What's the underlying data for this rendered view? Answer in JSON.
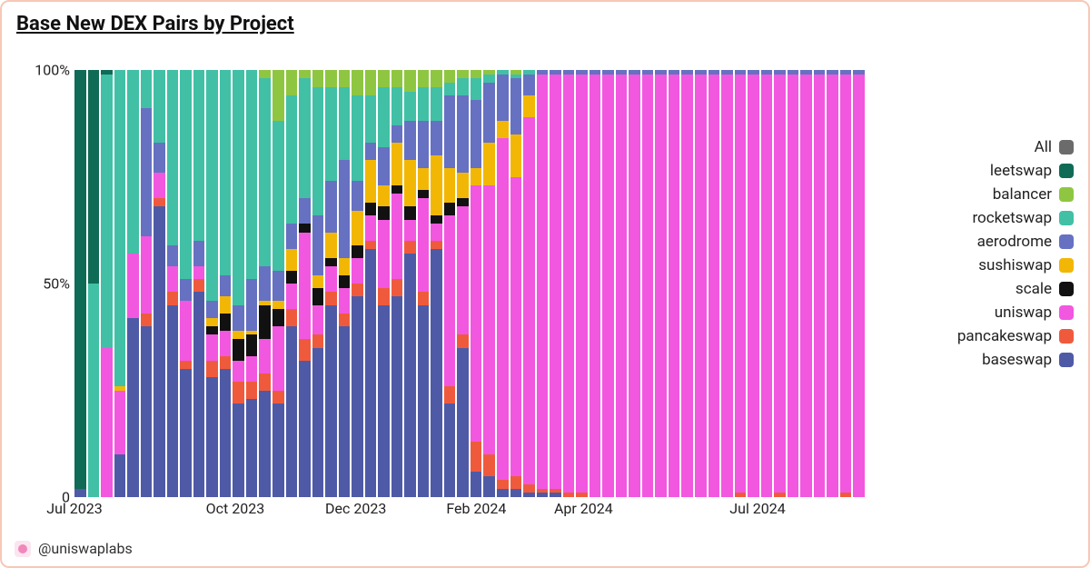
{
  "title": "Base New DEX Pairs by Project",
  "attribution": "@uniswaplabs",
  "chart": {
    "type": "stacked-bar-100pct",
    "background_color": "#ffffff",
    "border_color": "#f7c8b7",
    "title_fontsize": 22,
    "label_fontsize": 16,
    "legend_fontsize": 17,
    "ylim": [
      0,
      100
    ],
    "y_ticks": [
      {
        "value": 0,
        "label": "0"
      },
      {
        "value": 50,
        "label": "50%"
      },
      {
        "value": 100,
        "label": "100%"
      }
    ],
    "x_ticks": [
      {
        "index": 0,
        "label": "Jul 2023"
      },
      {
        "index": 12,
        "label": "Oct 2023"
      },
      {
        "index": 21,
        "label": "Dec 2023"
      },
      {
        "index": 30,
        "label": "Feb 2024"
      },
      {
        "index": 38,
        "label": "Apr 2024"
      },
      {
        "index": 51,
        "label": "Jul 2024"
      }
    ],
    "series": [
      {
        "key": "baseswap",
        "label": "baseswap",
        "color": "#4f5aa6"
      },
      {
        "key": "pancakeswap",
        "label": "pancakeswap",
        "color": "#f05a3c"
      },
      {
        "key": "uniswap",
        "label": "uniswap",
        "color": "#f257e0"
      },
      {
        "key": "scale",
        "label": "scale",
        "color": "#111111"
      },
      {
        "key": "sushiswap",
        "label": "sushiswap",
        "color": "#f2b705"
      },
      {
        "key": "aerodrome",
        "label": "aerodrome",
        "color": "#6671c2"
      },
      {
        "key": "rocketswap",
        "label": "rocketswap",
        "color": "#41c0a6"
      },
      {
        "key": "balancer",
        "label": "balancer",
        "color": "#8fc641"
      },
      {
        "key": "leetswap",
        "label": "leetswap",
        "color": "#0f6b56"
      },
      {
        "key": "all",
        "label": "All",
        "color": "#6b6b6b"
      }
    ],
    "legend_order": [
      "all",
      "leetswap",
      "balancer",
      "rocketswap",
      "aerodrome",
      "sushiswap",
      "scale",
      "uniswap",
      "pancakeswap",
      "baseswap"
    ],
    "bars": [
      {
        "baseswap": 2,
        "pancakeswap": 0,
        "uniswap": 0,
        "scale": 0,
        "sushiswap": 0,
        "aerodrome": 0,
        "rocketswap": 0,
        "balancer": 0,
        "leetswap": 98
      },
      {
        "baseswap": 0,
        "pancakeswap": 0,
        "uniswap": 0,
        "scale": 0,
        "sushiswap": 0,
        "aerodrome": 0,
        "rocketswap": 50,
        "balancer": 0,
        "leetswap": 50
      },
      {
        "baseswap": 0,
        "pancakeswap": 0,
        "uniswap": 35,
        "scale": 0,
        "sushiswap": 0,
        "aerodrome": 0,
        "rocketswap": 64,
        "balancer": 0,
        "leetswap": 1
      },
      {
        "baseswap": 10,
        "pancakeswap": 0,
        "uniswap": 15,
        "scale": 0,
        "sushiswap": 1,
        "aerodrome": 0,
        "rocketswap": 74,
        "balancer": 0,
        "leetswap": 0
      },
      {
        "baseswap": 42,
        "pancakeswap": 0,
        "uniswap": 15,
        "scale": 0,
        "sushiswap": 0,
        "aerodrome": 0,
        "rocketswap": 43,
        "balancer": 0,
        "leetswap": 0
      },
      {
        "baseswap": 40,
        "pancakeswap": 3,
        "uniswap": 18,
        "scale": 0,
        "sushiswap": 0,
        "aerodrome": 30,
        "rocketswap": 9,
        "balancer": 0,
        "leetswap": 0
      },
      {
        "baseswap": 68,
        "pancakeswap": 2,
        "uniswap": 6,
        "scale": 0,
        "sushiswap": 0,
        "aerodrome": 7,
        "rocketswap": 17,
        "balancer": 0,
        "leetswap": 0
      },
      {
        "baseswap": 45,
        "pancakeswap": 3,
        "uniswap": 6,
        "scale": 0,
        "sushiswap": 0,
        "aerodrome": 5,
        "rocketswap": 41,
        "balancer": 0,
        "leetswap": 0
      },
      {
        "baseswap": 30,
        "pancakeswap": 2,
        "uniswap": 14,
        "scale": 0,
        "sushiswap": 0,
        "aerodrome": 5,
        "rocketswap": 49,
        "balancer": 0,
        "leetswap": 0
      },
      {
        "baseswap": 48,
        "pancakeswap": 3,
        "uniswap": 3,
        "scale": 0,
        "sushiswap": 0,
        "aerodrome": 6,
        "rocketswap": 40,
        "balancer": 0,
        "leetswap": 0
      },
      {
        "baseswap": 28,
        "pancakeswap": 4,
        "uniswap": 6,
        "scale": 2,
        "sushiswap": 2,
        "aerodrome": 4,
        "rocketswap": 54,
        "balancer": 0,
        "leetswap": 0
      },
      {
        "baseswap": 30,
        "pancakeswap": 3,
        "uniswap": 6,
        "scale": 4,
        "sushiswap": 4,
        "aerodrome": 5,
        "rocketswap": 48,
        "balancer": 0,
        "leetswap": 0
      },
      {
        "baseswap": 22,
        "pancakeswap": 5,
        "uniswap": 5,
        "scale": 5,
        "sushiswap": 2,
        "aerodrome": 6,
        "rocketswap": 55,
        "balancer": 0,
        "leetswap": 0
      },
      {
        "baseswap": 23,
        "pancakeswap": 4,
        "uniswap": 6,
        "scale": 5,
        "sushiswap": 1,
        "aerodrome": 12,
        "rocketswap": 49,
        "balancer": 0,
        "leetswap": 0
      },
      {
        "baseswap": 25,
        "pancakeswap": 4,
        "uniswap": 8,
        "scale": 8,
        "sushiswap": 1,
        "aerodrome": 8,
        "rocketswap": 44,
        "balancer": 2,
        "leetswap": 0
      },
      {
        "baseswap": 22,
        "pancakeswap": 3,
        "uniswap": 15,
        "scale": 4,
        "sushiswap": 2,
        "aerodrome": 7,
        "rocketswap": 35,
        "balancer": 12,
        "leetswap": 0
      },
      {
        "baseswap": 40,
        "pancakeswap": 4,
        "uniswap": 6,
        "scale": 3,
        "sushiswap": 5,
        "aerodrome": 6,
        "rocketswap": 30,
        "balancer": 6,
        "leetswap": 0
      },
      {
        "baseswap": 32,
        "pancakeswap": 5,
        "uniswap": 25,
        "scale": 2,
        "sushiswap": 0,
        "aerodrome": 6,
        "rocketswap": 28,
        "balancer": 2,
        "leetswap": 0
      },
      {
        "baseswap": 35,
        "pancakeswap": 3,
        "uniswap": 7,
        "scale": 4,
        "sushiswap": 3,
        "aerodrome": 14,
        "rocketswap": 30,
        "balancer": 4,
        "leetswap": 0
      },
      {
        "baseswap": 45,
        "pancakeswap": 3,
        "uniswap": 6,
        "scale": 2,
        "sushiswap": 6,
        "aerodrome": 12,
        "rocketswap": 22,
        "balancer": 4,
        "leetswap": 0
      },
      {
        "baseswap": 40,
        "pancakeswap": 3,
        "uniswap": 6,
        "scale": 3,
        "sushiswap": 4,
        "aerodrome": 23,
        "rocketswap": 17,
        "balancer": 4,
        "leetswap": 0
      },
      {
        "baseswap": 47,
        "pancakeswap": 3,
        "uniswap": 6,
        "scale": 3,
        "sushiswap": 8,
        "aerodrome": 7,
        "rocketswap": 20,
        "balancer": 6,
        "leetswap": 0
      },
      {
        "baseswap": 58,
        "pancakeswap": 2,
        "uniswap": 6,
        "scale": 3,
        "sushiswap": 10,
        "aerodrome": 4,
        "rocketswap": 11,
        "balancer": 6,
        "leetswap": 0
      },
      {
        "baseswap": 45,
        "pancakeswap": 4,
        "uniswap": 16,
        "scale": 3,
        "sushiswap": 5,
        "aerodrome": 9,
        "rocketswap": 14,
        "balancer": 4,
        "leetswap": 0
      },
      {
        "baseswap": 47,
        "pancakeswap": 4,
        "uniswap": 20,
        "scale": 2,
        "sushiswap": 10,
        "aerodrome": 4,
        "rocketswap": 9,
        "balancer": 4,
        "leetswap": 0
      },
      {
        "baseswap": 57,
        "pancakeswap": 3,
        "uniswap": 5,
        "scale": 3,
        "sushiswap": 11,
        "aerodrome": 9,
        "rocketswap": 7,
        "balancer": 5,
        "leetswap": 0
      },
      {
        "baseswap": 45,
        "pancakeswap": 3,
        "uniswap": 22,
        "scale": 2,
        "sushiswap": 5,
        "aerodrome": 11,
        "rocketswap": 8,
        "balancer": 4,
        "leetswap": 0
      },
      {
        "baseswap": 58,
        "pancakeswap": 2,
        "uniswap": 4,
        "scale": 2,
        "sushiswap": 14,
        "aerodrome": 8,
        "rocketswap": 8,
        "balancer": 4,
        "leetswap": 0
      },
      {
        "baseswap": 22,
        "pancakeswap": 4,
        "uniswap": 40,
        "scale": 3,
        "sushiswap": 8,
        "aerodrome": 17,
        "rocketswap": 3,
        "balancer": 3,
        "leetswap": 0
      },
      {
        "baseswap": 35,
        "pancakeswap": 3,
        "uniswap": 30,
        "scale": 2,
        "sushiswap": 6,
        "aerodrome": 18,
        "rocketswap": 4,
        "balancer": 2,
        "leetswap": 0
      },
      {
        "baseswap": 6,
        "pancakeswap": 7,
        "uniswap": 60,
        "scale": 0,
        "sushiswap": 4,
        "aerodrome": 16,
        "rocketswap": 5,
        "balancer": 2,
        "leetswap": 0
      },
      {
        "baseswap": 5,
        "pancakeswap": 5,
        "uniswap": 63,
        "scale": 0,
        "sushiswap": 10,
        "aerodrome": 14,
        "rocketswap": 2,
        "balancer": 1,
        "leetswap": 0
      },
      {
        "baseswap": 2,
        "pancakeswap": 2,
        "uniswap": 80,
        "scale": 0,
        "sushiswap": 4,
        "aerodrome": 11,
        "rocketswap": 1,
        "balancer": 0,
        "leetswap": 0
      },
      {
        "baseswap": 2,
        "pancakeswap": 3,
        "uniswap": 70,
        "scale": 0,
        "sushiswap": 10,
        "aerodrome": 13,
        "rocketswap": 1,
        "balancer": 1,
        "leetswap": 0
      },
      {
        "baseswap": 1,
        "pancakeswap": 2,
        "uniswap": 86,
        "scale": 0,
        "sushiswap": 5,
        "aerodrome": 5,
        "rocketswap": 1,
        "balancer": 0,
        "leetswap": 0
      },
      {
        "baseswap": 1,
        "pancakeswap": 1,
        "uniswap": 97,
        "scale": 0,
        "sushiswap": 0,
        "aerodrome": 1,
        "rocketswap": 0,
        "balancer": 0,
        "leetswap": 0
      },
      {
        "baseswap": 1,
        "pancakeswap": 1,
        "uniswap": 97,
        "scale": 0,
        "sushiswap": 0,
        "aerodrome": 1,
        "rocketswap": 0,
        "balancer": 0,
        "leetswap": 0
      },
      {
        "baseswap": 0,
        "pancakeswap": 1,
        "uniswap": 98,
        "scale": 0,
        "sushiswap": 0,
        "aerodrome": 1,
        "rocketswap": 0,
        "balancer": 0,
        "leetswap": 0
      },
      {
        "baseswap": 0,
        "pancakeswap": 1,
        "uniswap": 98,
        "scale": 0,
        "sushiswap": 0,
        "aerodrome": 1,
        "rocketswap": 0,
        "balancer": 0,
        "leetswap": 0
      },
      {
        "baseswap": 0,
        "pancakeswap": 0,
        "uniswap": 99,
        "scale": 0,
        "sushiswap": 0,
        "aerodrome": 1,
        "rocketswap": 0,
        "balancer": 0,
        "leetswap": 0
      },
      {
        "baseswap": 0,
        "pancakeswap": 0,
        "uniswap": 99,
        "scale": 0,
        "sushiswap": 0,
        "aerodrome": 1,
        "rocketswap": 0,
        "balancer": 0,
        "leetswap": 0
      },
      {
        "baseswap": 0,
        "pancakeswap": 0,
        "uniswap": 99,
        "scale": 0,
        "sushiswap": 0,
        "aerodrome": 1,
        "rocketswap": 0,
        "balancer": 0,
        "leetswap": 0
      },
      {
        "baseswap": 0,
        "pancakeswap": 0,
        "uniswap": 99,
        "scale": 0,
        "sushiswap": 0,
        "aerodrome": 1,
        "rocketswap": 0,
        "balancer": 0,
        "leetswap": 0
      },
      {
        "baseswap": 0,
        "pancakeswap": 0,
        "uniswap": 99,
        "scale": 0,
        "sushiswap": 0,
        "aerodrome": 1,
        "rocketswap": 0,
        "balancer": 0,
        "leetswap": 0
      },
      {
        "baseswap": 0,
        "pancakeswap": 0,
        "uniswap": 99,
        "scale": 0,
        "sushiswap": 0,
        "aerodrome": 1,
        "rocketswap": 0,
        "balancer": 0,
        "leetswap": 0
      },
      {
        "baseswap": 0,
        "pancakeswap": 0,
        "uniswap": 99,
        "scale": 0,
        "sushiswap": 0,
        "aerodrome": 1,
        "rocketswap": 0,
        "balancer": 0,
        "leetswap": 0
      },
      {
        "baseswap": 0,
        "pancakeswap": 0,
        "uniswap": 99,
        "scale": 0,
        "sushiswap": 0,
        "aerodrome": 1,
        "rocketswap": 0,
        "balancer": 0,
        "leetswap": 0
      },
      {
        "baseswap": 0,
        "pancakeswap": 0,
        "uniswap": 99,
        "scale": 0,
        "sushiswap": 0,
        "aerodrome": 1,
        "rocketswap": 0,
        "balancer": 0,
        "leetswap": 0
      },
      {
        "baseswap": 0,
        "pancakeswap": 0,
        "uniswap": 99,
        "scale": 0,
        "sushiswap": 0,
        "aerodrome": 1,
        "rocketswap": 0,
        "balancer": 0,
        "leetswap": 0
      },
      {
        "baseswap": 0,
        "pancakeswap": 0,
        "uniswap": 99,
        "scale": 0,
        "sushiswap": 0,
        "aerodrome": 1,
        "rocketswap": 0,
        "balancer": 0,
        "leetswap": 0
      },
      {
        "baseswap": 0,
        "pancakeswap": 1,
        "uniswap": 98,
        "scale": 0,
        "sushiswap": 0,
        "aerodrome": 1,
        "rocketswap": 0,
        "balancer": 0,
        "leetswap": 0
      },
      {
        "baseswap": 0,
        "pancakeswap": 0,
        "uniswap": 99,
        "scale": 0,
        "sushiswap": 0,
        "aerodrome": 1,
        "rocketswap": 0,
        "balancer": 0,
        "leetswap": 0
      },
      {
        "baseswap": 0,
        "pancakeswap": 0,
        "uniswap": 99,
        "scale": 0,
        "sushiswap": 0,
        "aerodrome": 1,
        "rocketswap": 0,
        "balancer": 0,
        "leetswap": 0
      },
      {
        "baseswap": 0,
        "pancakeswap": 1,
        "uniswap": 98,
        "scale": 0,
        "sushiswap": 0,
        "aerodrome": 1,
        "rocketswap": 0,
        "balancer": 0,
        "leetswap": 0
      },
      {
        "baseswap": 0,
        "pancakeswap": 0,
        "uniswap": 99,
        "scale": 0,
        "sushiswap": 0,
        "aerodrome": 1,
        "rocketswap": 0,
        "balancer": 0,
        "leetswap": 0
      },
      {
        "baseswap": 0,
        "pancakeswap": 0,
        "uniswap": 99,
        "scale": 0,
        "sushiswap": 0,
        "aerodrome": 1,
        "rocketswap": 0,
        "balancer": 0,
        "leetswap": 0
      },
      {
        "baseswap": 0,
        "pancakeswap": 0,
        "uniswap": 99,
        "scale": 0,
        "sushiswap": 0,
        "aerodrome": 1,
        "rocketswap": 0,
        "balancer": 0,
        "leetswap": 0
      },
      {
        "baseswap": 0,
        "pancakeswap": 0,
        "uniswap": 99,
        "scale": 0,
        "sushiswap": 0,
        "aerodrome": 1,
        "rocketswap": 0,
        "balancer": 0,
        "leetswap": 0
      },
      {
        "baseswap": 0,
        "pancakeswap": 1,
        "uniswap": 98,
        "scale": 0,
        "sushiswap": 0,
        "aerodrome": 1,
        "rocketswap": 0,
        "balancer": 0,
        "leetswap": 0
      },
      {
        "baseswap": 0,
        "pancakeswap": 0,
        "uniswap": 99,
        "scale": 0,
        "sushiswap": 0,
        "aerodrome": 1,
        "rocketswap": 0,
        "balancer": 0,
        "leetswap": 0
      }
    ]
  }
}
